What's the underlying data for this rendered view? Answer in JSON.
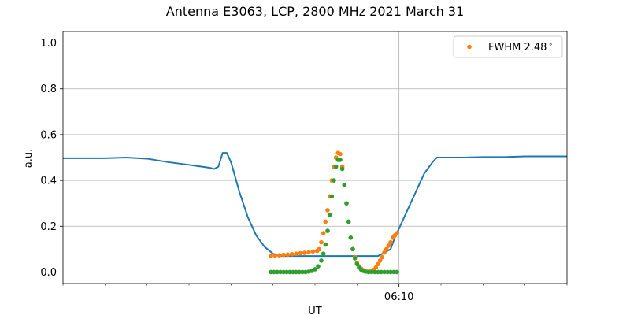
{
  "chart_data": {
    "type": "line",
    "title": "Antenna E3063, LCP, 2800 MHz 2021 March 31",
    "xlabel": "UT",
    "ylabel": "a.u.",
    "xlim": [
      0,
      120
    ],
    "ylim": [
      -0.05,
      1.05
    ],
    "x_units": "minutes from plot start (UT)",
    "x_tick_labels": [
      {
        "x": 80,
        "label": "06:10"
      }
    ],
    "x_minor_ticks": [
      0,
      10,
      20,
      30,
      40,
      50,
      60,
      70,
      80,
      90,
      100,
      110,
      120
    ],
    "y_ticks": [
      0.0,
      0.2,
      0.4,
      0.6,
      0.8,
      1.0
    ],
    "y_tick_labels": [
      "0.0",
      "0.2",
      "0.4",
      "0.6",
      "0.8",
      "1.0"
    ],
    "grid": true,
    "legend_position": "top-right",
    "colors": {
      "line": "#1f77b4",
      "orange": "#ff7f0e",
      "green": "#2ca02c"
    },
    "series": [
      {
        "kind": "line",
        "color": "#1f77b4",
        "x": [
          0,
          5,
          10,
          15,
          20,
          25,
          30,
          35,
          36,
          37,
          38,
          39,
          40,
          42,
          44,
          46,
          48,
          50,
          52,
          54,
          55,
          60,
          65,
          70,
          75,
          78,
          79,
          80,
          82,
          84,
          86,
          88,
          89,
          90,
          95,
          100,
          105,
          110,
          115,
          120
        ],
        "y": [
          0.497,
          0.497,
          0.497,
          0.5,
          0.495,
          0.48,
          0.468,
          0.455,
          0.45,
          0.46,
          0.52,
          0.52,
          0.48,
          0.35,
          0.24,
          0.16,
          0.11,
          0.08,
          0.07,
          0.07,
          0.07,
          0.07,
          0.07,
          0.07,
          0.07,
          0.1,
          0.15,
          0.19,
          0.27,
          0.35,
          0.43,
          0.48,
          0.5,
          0.5,
          0.5,
          0.502,
          0.502,
          0.505,
          0.505,
          0.505
        ]
      },
      {
        "kind": "scatter",
        "name": "FWHM 2.48$^\\circ$",
        "legend_label": "FWHM 2.48",
        "legend_superscript": "∘",
        "color": "#ff7f0e",
        "x": [
          49.5,
          50.5,
          51.5,
          52.5,
          53.5,
          54.5,
          55.5,
          56.5,
          57.5,
          58.5,
          59.5,
          60.5,
          61.0,
          61.5,
          62.0,
          62.5,
          63.0,
          63.5,
          64.0,
          64.5,
          65.0,
          65.5,
          66.0,
          66.5,
          67.0,
          67.5,
          68.0,
          68.5,
          69.0,
          69.5,
          70.0,
          70.5,
          71.0,
          71.5,
          72.0,
          72.5,
          73.0,
          73.5,
          74.0,
          74.5,
          75.0,
          75.5,
          76.0,
          76.5,
          77.0,
          77.5,
          78.0,
          78.5,
          79.0,
          79.5
        ],
        "y": [
          0.07,
          0.072,
          0.073,
          0.075,
          0.076,
          0.078,
          0.08,
          0.082,
          0.084,
          0.086,
          0.09,
          0.092,
          0.1,
          0.13,
          0.17,
          0.22,
          0.27,
          0.33,
          0.4,
          0.46,
          0.5,
          0.52,
          0.515,
          0.46,
          0.38,
          0.3,
          0.22,
          0.15,
          0.1,
          0.065,
          0.04,
          0.025,
          0.015,
          0.008,
          0.003,
          0.002,
          0.002,
          0.004,
          0.01,
          0.02,
          0.035,
          0.05,
          0.065,
          0.085,
          0.1,
          0.115,
          0.13,
          0.15,
          0.16,
          0.17
        ]
      },
      {
        "kind": "scatter",
        "color": "#2ca02c",
        "x": [
          49.5,
          50.25,
          51.0,
          51.75,
          52.5,
          53.25,
          54.0,
          54.75,
          55.5,
          56.25,
          57.0,
          57.75,
          58.5,
          59.25,
          60.0,
          60.75,
          61.5,
          62.0,
          62.5,
          63.0,
          63.5,
          64.0,
          64.5,
          65.0,
          65.5,
          66.0,
          66.5,
          67.0,
          67.5,
          68.0,
          68.5,
          69.0,
          69.5,
          70.0,
          70.5,
          71.0,
          71.5,
          72.0,
          72.75,
          73.5,
          74.25,
          75.0,
          75.75,
          76.5,
          77.25,
          78.0,
          78.75,
          79.5
        ],
        "y": [
          0.0,
          0.0,
          0.0,
          0.0,
          0.0,
          0.0,
          0.0,
          0.0,
          0.0,
          0.0,
          0.0,
          0.0,
          0.002,
          0.005,
          0.012,
          0.025,
          0.05,
          0.08,
          0.12,
          0.18,
          0.25,
          0.33,
          0.4,
          0.46,
          0.49,
          0.49,
          0.45,
          0.38,
          0.3,
          0.22,
          0.15,
          0.1,
          0.06,
          0.035,
          0.02,
          0.01,
          0.005,
          0.002,
          0.0,
          0.0,
          0.0,
          0.0,
          0.0,
          0.0,
          0.0,
          0.0,
          0.0,
          0.0
        ]
      }
    ]
  }
}
